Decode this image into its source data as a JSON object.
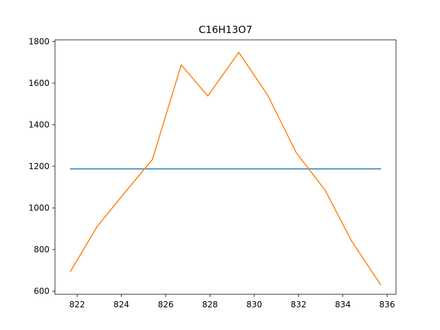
{
  "chart_data": {
    "type": "line",
    "title": "C16H13O7",
    "xlabel": "",
    "ylabel": "",
    "xlim": [
      821.0,
      836.4
    ],
    "ylim": [
      585,
      1808
    ],
    "x_ticks": [
      822,
      824,
      826,
      828,
      830,
      832,
      834,
      836
    ],
    "y_ticks": [
      600,
      800,
      1000,
      1200,
      1400,
      1600,
      1800
    ],
    "grid": false,
    "series": [
      {
        "color": "#1f77b4",
        "x": [
          821.7,
          835.7
        ],
        "y": [
          1188,
          1188
        ]
      },
      {
        "color": "#ff7f0e",
        "x": [
          821.7,
          822.9,
          824.2,
          825.4,
          826.7,
          827.9,
          829.3,
          830.6,
          831.9,
          833.2,
          834.4,
          835.7
        ],
        "y": [
          695,
          910,
          1080,
          1233,
          1688,
          1538,
          1748,
          1543,
          1265,
          1085,
          840,
          632
        ]
      }
    ]
  }
}
